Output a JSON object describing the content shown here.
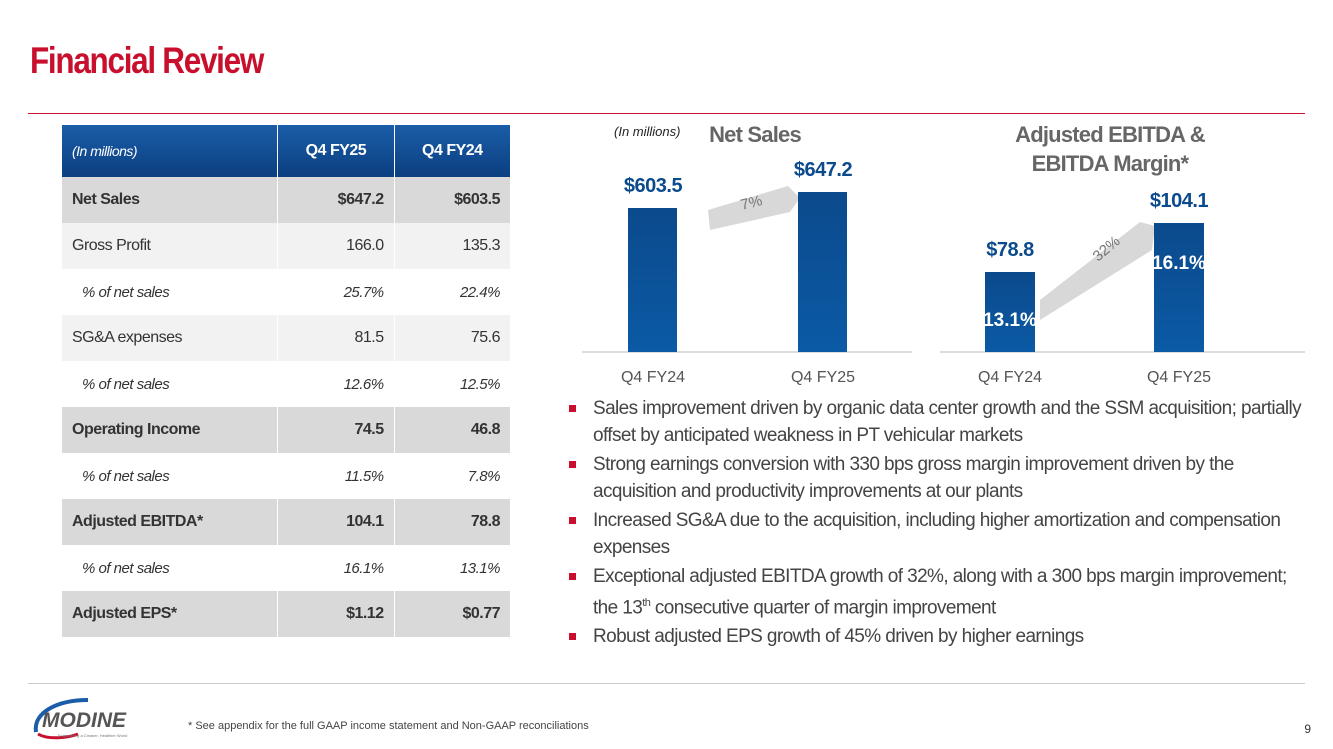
{
  "header": {
    "title": "Financial Review"
  },
  "table": {
    "headers": [
      "(In millions)",
      "Q4 FY25",
      "Q4 FY24"
    ],
    "rows": [
      {
        "label": "Net Sales",
        "fy25": "$647.2",
        "fy24": "$603.5",
        "style": "b"
      },
      {
        "label": "Gross Profit",
        "fy25": "166.0",
        "fy24": "135.3",
        "style": "g"
      },
      {
        "label": "% of net sales",
        "fy25": "25.7%",
        "fy24": "22.4%",
        "style": "p"
      },
      {
        "label": "SG&A expenses",
        "fy25": "81.5",
        "fy24": "75.6",
        "style": "g"
      },
      {
        "label": "% of net sales",
        "fy25": "12.6%",
        "fy24": "12.5%",
        "style": "p"
      },
      {
        "label": "Operating Income",
        "fy25": "74.5",
        "fy24": "46.8",
        "style": "b"
      },
      {
        "label": "% of net sales",
        "fy25": "11.5%",
        "fy24": "7.8%",
        "style": "p"
      },
      {
        "label": "Adjusted EBITDA*",
        "fy25": "104.1",
        "fy24": "78.8",
        "style": "b"
      },
      {
        "label": "% of net sales",
        "fy25": "16.1%",
        "fy24": "13.1%",
        "style": "p"
      },
      {
        "label": "Adjusted EPS*",
        "fy25": "$1.12",
        "fy24": "$0.77",
        "style": "b"
      }
    ]
  },
  "chart_data": [
    {
      "type": "bar",
      "title": "Net Sales",
      "unit_note": "(In millions)",
      "categories": [
        "Q4 FY24",
        "Q4 FY25"
      ],
      "values": [
        603.5,
        647.2
      ],
      "labels": [
        "$603.5",
        "$647.2"
      ],
      "growth": "7%",
      "ylim": [
        200,
        700
      ]
    },
    {
      "type": "bar",
      "title": "Adjusted EBITDA & EBITDA Margin*",
      "categories": [
        "Q4 FY24",
        "Q4 FY25"
      ],
      "values": [
        78.8,
        104.1
      ],
      "labels": [
        "$78.8",
        "$104.1"
      ],
      "margins": [
        "13.1%",
        "16.1%"
      ],
      "growth": "32%",
      "ylim": [
        38,
        110
      ]
    }
  ],
  "bullets": [
    "Sales improvement driven by organic data center growth and the SSM acquisition; partially offset by anticipated weakness in PT vehicular markets",
    "Strong earnings conversion with 330 bps gross margin improvement driven by the acquisition and productivity improvements at our plants",
    "Increased SG&A due to the acquisition, including higher amortization and compensation expenses",
    "Exceptional adjusted EBITDA growth of 32%, along with a 300 bps margin improvement; the 13th consecutive quarter of margin improvement",
    "Robust adjusted EPS growth of 45% driven by higher earnings"
  ],
  "footer": {
    "note": "* See appendix for the full GAAP income statement and Non-GAAP reconciliations",
    "page": "9",
    "logo": "MODINE",
    "tagline": "Engineering a Cleaner, Healthier World"
  }
}
